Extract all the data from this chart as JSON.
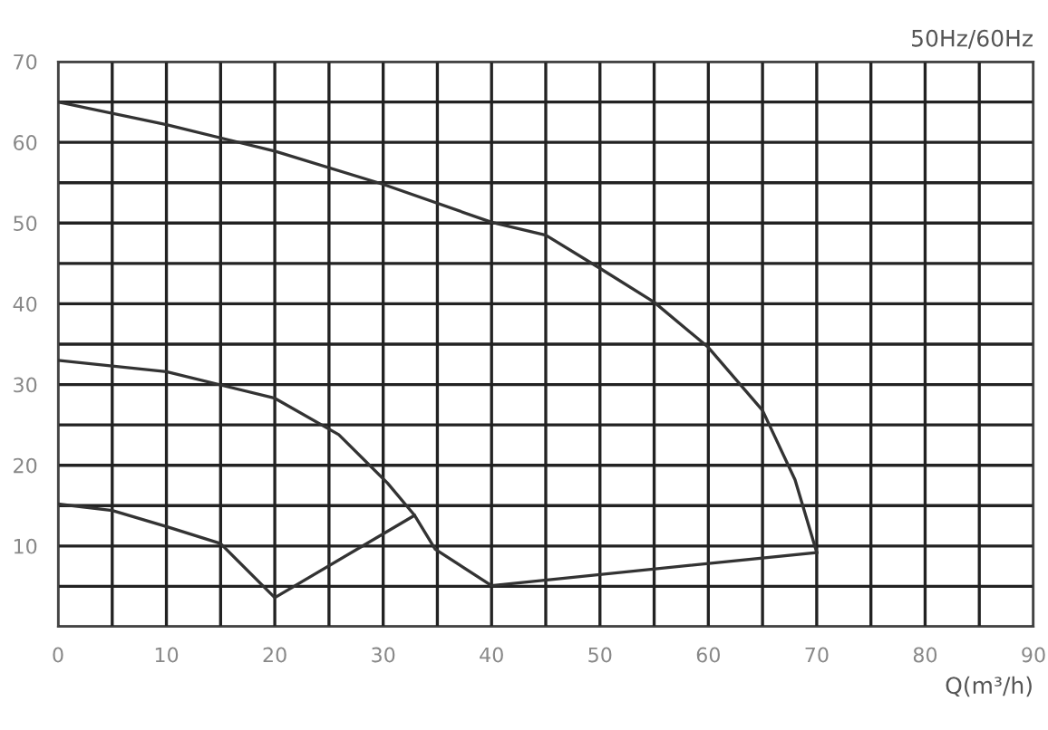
{
  "chart_data": {
    "type": "line",
    "title": "50Hz/60Hz",
    "xlabel": "Q(m³/h)",
    "xlim": [
      0,
      90
    ],
    "ylim": [
      0,
      70
    ],
    "xticks": [
      0,
      {
        "value": 5,
        "label": null
      },
      10,
      {
        "value": 15,
        "label": null
      },
      20,
      {
        "value": 25,
        "label": null
      },
      30,
      {
        "value": 35,
        "label": null
      },
      40,
      {
        "value": 45,
        "label": null
      },
      50,
      {
        "value": 55,
        "label": null
      },
      60,
      {
        "value": 65,
        "label": null
      },
      70,
      {
        "value": 75,
        "label": null
      },
      80,
      {
        "value": 85,
        "label": null
      },
      90
    ],
    "yticks": [
      {
        "value": 0,
        "label": null
      },
      {
        "value": 5,
        "label": null
      },
      10,
      {
        "value": 15,
        "label": null
      },
      20,
      {
        "value": 25,
        "label": null
      },
      30,
      {
        "value": 35,
        "label": null
      },
      40,
      {
        "value": 45,
        "label": null
      },
      50,
      {
        "value": 55,
        "label": null
      },
      60,
      {
        "value": 65,
        "label": null
      },
      70
    ],
    "grid": true,
    "marker": "none",
    "line_style": "solid",
    "series": [
      {
        "color": "#333333",
        "x": [
          0,
          10,
          20,
          30,
          40,
          45,
          50,
          55,
          60,
          65,
          68,
          70
        ],
        "values": [
          65,
          62.2,
          58.9,
          54.8,
          50.1,
          48.5,
          44.4,
          40.2,
          34.6,
          26.8,
          18.2,
          9.2
        ]
      },
      {
        "color": "#333333",
        "x": [
          70,
          40,
          34.8,
          32.9
        ],
        "values": [
          9.2,
          5.1,
          9.6,
          13.8
        ]
      },
      {
        "color": "#333333",
        "x": [
          0,
          10,
          20,
          25.9,
          30.4,
          32.9,
          20,
          15,
          10,
          5,
          0
        ],
        "values": [
          33,
          31.6,
          28.3,
          23.8,
          17.8,
          13.8,
          3.6,
          10.3,
          12.4,
          14.4,
          15.2
        ]
      }
    ]
  }
}
